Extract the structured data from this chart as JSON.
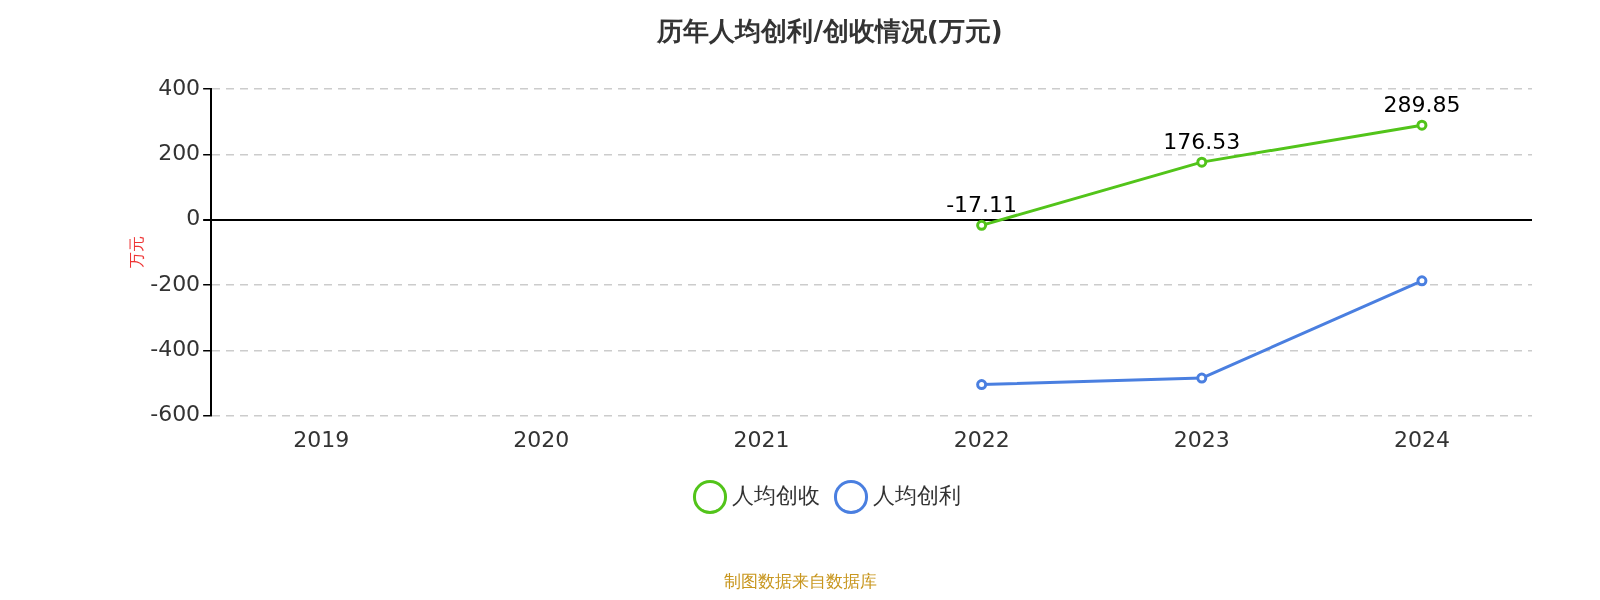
{
  "chart_data": {
    "type": "line",
    "title": "历年人均创利/创收情况(万元)",
    "ylabel": "万元",
    "categories": [
      "2019",
      "2020",
      "2021",
      "2022",
      "2023",
      "2024"
    ],
    "series": [
      {
        "name": "人均创收",
        "color": "#52c41a",
        "values": [
          null,
          null,
          null,
          -17.11,
          176.53,
          289.85
        ],
        "value_labels": [
          null,
          null,
          null,
          "-17.11",
          "176.53",
          "289.85"
        ]
      },
      {
        "name": "人均创利",
        "color": "#4a7fe0",
        "values": [
          null,
          null,
          null,
          -505,
          -485,
          -187
        ]
      }
    ],
    "ylim": [
      -600,
      400
    ],
    "yticks": [
      -600,
      -400,
      -200,
      0,
      200,
      400
    ],
    "grid": "y",
    "legend": "bottom",
    "marker": "circle",
    "line_style": "solid",
    "annotations": [
      "制图数据来自数据库"
    ]
  }
}
